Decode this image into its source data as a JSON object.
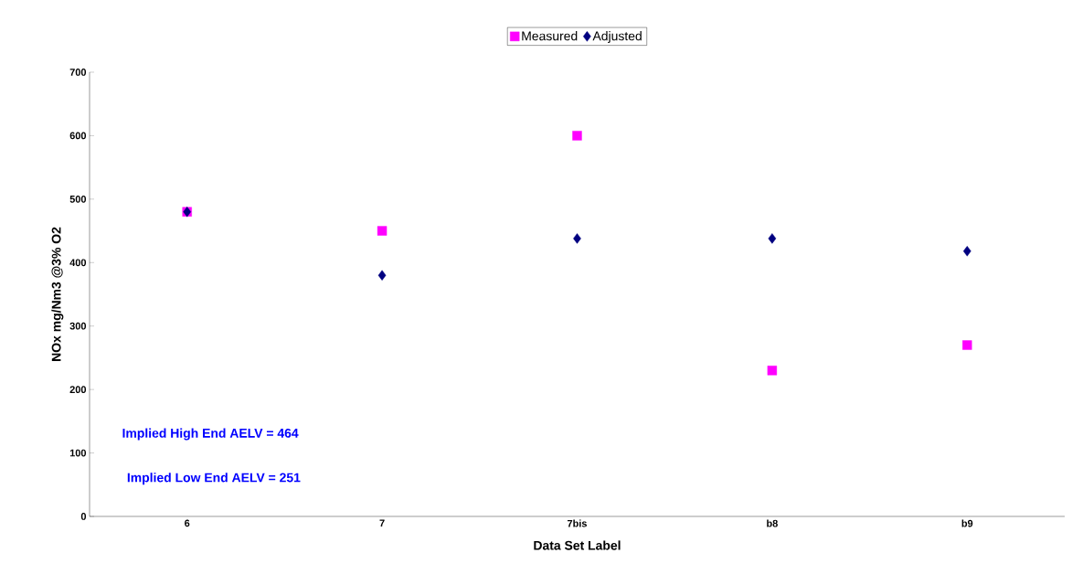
{
  "chart_data": {
    "type": "scatter",
    "xlabel": "Data Set Label",
    "ylabel": "NOx mg/Nm3 @3% O2",
    "categories": [
      "6",
      "7",
      "7bis",
      "b8",
      "b9"
    ],
    "series": [
      {
        "name": "Measured",
        "color": "#ff00ff",
        "marker": "square",
        "values": [
          480,
          450,
          600,
          230,
          270
        ]
      },
      {
        "name": "Adjusted",
        "color": "#000080",
        "marker": "diamond",
        "values": [
          480,
          380,
          438,
          438,
          418
        ]
      }
    ],
    "ylim": [
      0,
      700
    ],
    "yticks": [
      0,
      100,
      200,
      300,
      400,
      500,
      600,
      700
    ],
    "legend": "top",
    "grid": false,
    "annotations": [
      "Implied High End AELV =   464",
      "Implied Low End AELV =   251"
    ]
  }
}
